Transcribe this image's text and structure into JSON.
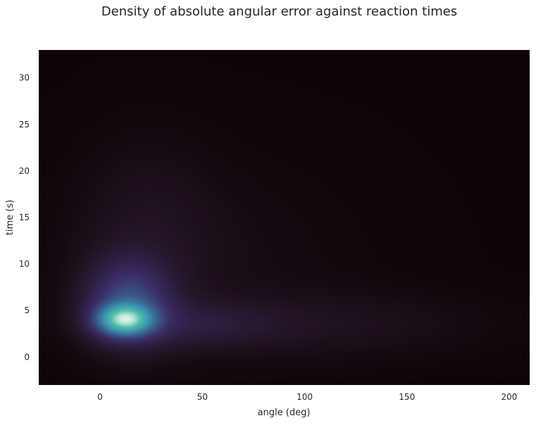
{
  "chart_data": {
    "type": "heatmap",
    "subtype": "kde-density",
    "title": "Density of absolute angular error against reaction times",
    "xlabel": "angle (deg)",
    "ylabel": "time (s)",
    "xlim": [
      -30,
      210
    ],
    "ylim": [
      -3,
      33
    ],
    "xticks": [
      0,
      50,
      100,
      150,
      200
    ],
    "yticks": [
      0,
      5,
      10,
      15,
      20,
      25,
      30
    ],
    "grid": false,
    "colormap": "mako",
    "colors": {
      "background": "#0e0406",
      "low": "#221424",
      "mid": "#3b2d66",
      "high": "#3a8fb0",
      "peak": "#dff5ea"
    },
    "density_components": [
      {
        "x": 12,
        "y": 4.0,
        "sx": 9,
        "sy": 1.1,
        "weight": 1.0
      },
      {
        "x": 14,
        "y": 6.0,
        "sx": 14,
        "sy": 3.0,
        "weight": 0.45
      },
      {
        "x": 45,
        "y": 3.5,
        "sx": 30,
        "sy": 1.7,
        "weight": 0.14
      },
      {
        "x": 22,
        "y": 13.0,
        "sx": 24,
        "sy": 7.0,
        "weight": 0.07
      },
      {
        "x": 120,
        "y": 3.5,
        "sx": 50,
        "sy": 2.5,
        "weight": 0.06
      },
      {
        "x": 60,
        "y": 10.0,
        "sx": 50,
        "sy": 8.0,
        "weight": 0.035
      }
    ]
  }
}
